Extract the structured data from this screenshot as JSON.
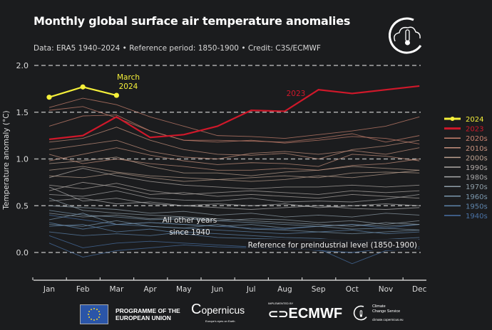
{
  "header": {
    "title": "Monthly global surface air temperature anomalies",
    "subtitle": "Data: ERA5 1940–2024 • Reference period: 1850-1900 • Credit: C3S/ECMWF",
    "logo_icon": "cloud-thermometer-icon"
  },
  "chart_data": {
    "type": "line",
    "title": "Monthly global surface air temperature anomalies",
    "xlabel": "",
    "ylabel": "Temperature anomaly (°C)",
    "categories": [
      "Jan",
      "Feb",
      "Mar",
      "Apr",
      "May",
      "Jun",
      "Jul",
      "Aug",
      "Sep",
      "Oct",
      "Nov",
      "Dec"
    ],
    "ylim": [
      -0.3,
      2.1
    ],
    "yticks": [
      "0.0",
      "0.5",
      "1.0",
      "1.5",
      "2.0"
    ],
    "ytick_values": [
      0,
      0.5,
      1.0,
      1.5,
      2.0
    ],
    "grid": "dashed horizontal at ticks",
    "legend_placement": "right",
    "highlight": [
      {
        "name": "2024",
        "color": "#f5f03a",
        "markers": true,
        "values": [
          1.66,
          1.77,
          1.68
        ]
      },
      {
        "name": "2023",
        "color": "#d0182a",
        "markers": false,
        "values": [
          1.21,
          1.25,
          1.45,
          1.23,
          1.26,
          1.35,
          1.52,
          1.51,
          1.74,
          1.7,
          1.74,
          1.78
        ]
      }
    ],
    "decades": [
      {
        "name": "2020s",
        "color": "#c9826f",
        "series": [
          [
            1.55,
            1.65,
            1.58,
            1.45,
            1.35,
            1.25,
            1.24,
            1.22,
            1.26,
            1.3,
            1.35,
            1.45
          ],
          [
            1.35,
            1.46,
            1.47,
            1.3,
            1.2,
            1.18,
            1.2,
            1.17,
            1.2,
            1.24,
            1.22,
            1.16
          ],
          [
            1.52,
            1.56,
            1.44,
            1.3,
            1.2,
            1.2,
            1.19,
            1.18,
            1.22,
            1.27,
            1.18,
            1.25
          ]
        ]
      },
      {
        "name": "2010s",
        "color": "#c6917e",
        "series": [
          [
            1.18,
            1.22,
            1.34,
            1.2,
            1.1,
            1.05,
            1.04,
            1.06,
            1.0,
            1.1,
            1.14,
            1.2
          ],
          [
            1.1,
            1.15,
            1.2,
            1.08,
            1.02,
            1.0,
            1.06,
            1.08,
            1.05,
            1.09,
            1.05,
            1.12
          ],
          [
            0.98,
            1.05,
            1.12,
            1.04,
            0.98,
            0.94,
            0.96,
            0.95,
            0.92,
            1.05,
            1.03,
            0.98
          ],
          [
            1.05,
            0.95,
            1.0,
            0.95,
            0.92,
            0.88,
            0.88,
            0.9,
            0.88,
            0.93,
            0.95,
            1.0
          ]
        ]
      },
      {
        "name": "2000s",
        "color": "#bba08f",
        "series": [
          [
            0.95,
            0.98,
            1.02,
            0.92,
            0.85,
            0.85,
            0.82,
            0.86,
            0.88,
            0.92,
            0.9,
            0.88
          ],
          [
            0.88,
            0.92,
            0.86,
            0.82,
            0.8,
            0.78,
            0.8,
            0.82,
            0.8,
            0.85,
            0.86,
            0.85
          ],
          [
            0.82,
            0.8,
            0.85,
            0.8,
            0.76,
            0.78,
            0.76,
            0.78,
            0.82,
            0.8,
            0.84,
            0.88
          ]
        ]
      },
      {
        "name": "1990s",
        "color": "#b0a9a6",
        "series": [
          [
            0.8,
            0.9,
            0.82,
            0.76,
            0.72,
            0.7,
            0.68,
            0.7,
            0.7,
            0.72,
            0.7,
            0.72
          ],
          [
            0.72,
            0.68,
            0.74,
            0.66,
            0.62,
            0.64,
            0.66,
            0.64,
            0.62,
            0.66,
            0.64,
            0.66
          ],
          [
            0.66,
            0.75,
            0.7,
            0.62,
            0.64,
            0.6,
            0.62,
            0.6,
            0.58,
            0.62,
            0.6,
            0.58
          ]
        ]
      },
      {
        "name": "1980s",
        "color": "#a8a8a9",
        "series": [
          [
            0.62,
            0.6,
            0.66,
            0.58,
            0.56,
            0.55,
            0.58,
            0.54,
            0.55,
            0.54,
            0.57,
            0.62
          ],
          [
            0.55,
            0.58,
            0.52,
            0.54,
            0.5,
            0.52,
            0.5,
            0.52,
            0.48,
            0.5,
            0.52,
            0.5
          ],
          [
            0.7,
            0.55,
            0.58,
            0.52,
            0.5,
            0.48,
            0.46,
            0.48,
            0.5,
            0.47,
            0.46,
            0.48
          ]
        ]
      },
      {
        "name": "1970s",
        "color": "#909fa9",
        "series": [
          [
            0.5,
            0.48,
            0.46,
            0.42,
            0.44,
            0.4,
            0.42,
            0.38,
            0.4,
            0.38,
            0.42,
            0.4
          ],
          [
            0.42,
            0.38,
            0.4,
            0.36,
            0.38,
            0.34,
            0.36,
            0.35,
            0.32,
            0.34,
            0.3,
            0.34
          ],
          [
            0.58,
            0.45,
            0.42,
            0.4,
            0.38,
            0.36,
            0.34,
            0.32,
            0.3,
            0.28,
            0.32,
            0.3
          ]
        ]
      },
      {
        "name": "1960s",
        "color": "#7b97ad",
        "series": [
          [
            0.45,
            0.4,
            0.38,
            0.35,
            0.36,
            0.34,
            0.32,
            0.3,
            0.28,
            0.3,
            0.28,
            0.3
          ],
          [
            0.35,
            0.42,
            0.3,
            0.32,
            0.3,
            0.28,
            0.3,
            0.26,
            0.28,
            0.25,
            0.26,
            0.24
          ],
          [
            0.3,
            0.28,
            0.34,
            0.28,
            0.26,
            0.3,
            0.25,
            0.24,
            0.22,
            0.2,
            0.22,
            0.24
          ]
        ]
      },
      {
        "name": "1950s",
        "color": "#5f86ad",
        "series": [
          [
            0.32,
            0.25,
            0.3,
            0.28,
            0.26,
            0.24,
            0.22,
            0.2,
            0.22,
            0.24,
            0.2,
            0.22
          ],
          [
            0.22,
            0.18,
            0.2,
            0.18,
            0.22,
            0.2,
            0.18,
            0.16,
            0.15,
            0.12,
            0.14,
            0.16
          ],
          [
            0.28,
            0.3,
            0.22,
            0.25,
            0.2,
            0.16,
            0.15,
            0.14,
            0.13,
            0.1,
            0.12,
            0.14
          ]
        ]
      },
      {
        "name": "1940s",
        "color": "#4a72a6",
        "series": [
          [
            0.4,
            0.35,
            0.3,
            0.32,
            0.3,
            0.28,
            0.26,
            0.25,
            0.28,
            0.3,
            0.26,
            0.3
          ],
          [
            0.18,
            0.05,
            0.1,
            0.12,
            0.1,
            0.08,
            0.06,
            0.05,
            0.02,
            0.0,
            0.04,
            0.06
          ],
          [
            0.1,
            -0.05,
            0.02,
            0.05,
            0.08,
            0.06,
            0.05,
            0.03,
            0.04,
            -0.12,
            0.02,
            0.04
          ]
        ]
      }
    ],
    "annotations": {
      "march_2024": "March\n2024",
      "label_2023": "2023",
      "other_years": "All other years\nsince 1940",
      "reference": "Reference for preindustrial level (1850-1900)"
    },
    "legend": [
      "2024",
      "2023",
      "2020s",
      "2010s",
      "2000s",
      "1990s",
      "1980s",
      "1970s",
      "1960s",
      "1950s",
      "1940s"
    ]
  },
  "footer": {
    "eu_line1": "PROGRAMME OF THE",
    "eu_line2": "EUROPEAN UNION",
    "copernicus": "opernicus",
    "copernicus_tag": "Europe's eyes on Earth",
    "ecmwf_small": "IMPLEMENTED BY",
    "ecmwf": "ECMWF",
    "c3s_line1": "Climate",
    "c3s_line2": "Change Service",
    "c3s_url": "climate.copernicus.eu"
  }
}
